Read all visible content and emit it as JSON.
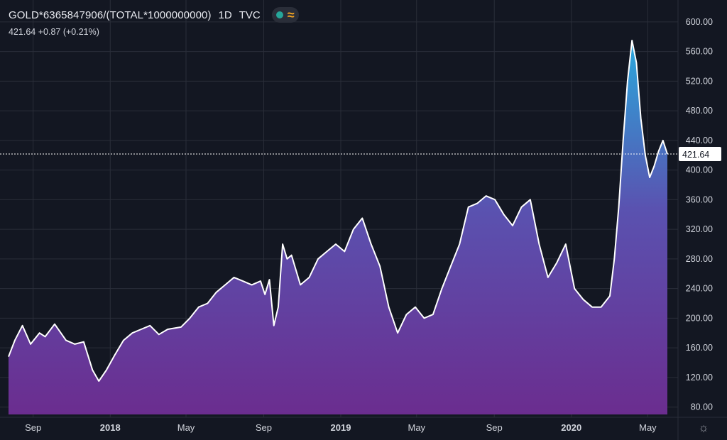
{
  "header": {
    "symbol": "GOLD*6365847906/(TOTAL*1000000000)",
    "interval": "1D",
    "exchange": "TVC",
    "last": "421.64",
    "change": "+0.87",
    "change_pct": "(+0.21%)"
  },
  "icons": {
    "status": "green-dot-icon",
    "indicator": "wave-icon",
    "settings": "gear-icon"
  },
  "colors": {
    "background": "#131722",
    "line": "#ffffff",
    "fill_top": "#2aa8dc",
    "fill_mid": "#5a52b0",
    "fill_bottom": "#6b2d8f",
    "grid": "#2a2e39",
    "price_label_bg": "#ffffff"
  },
  "chart_data": {
    "type": "area",
    "ylim": [
      70,
      620
    ],
    "y_ticks": [
      "80.00",
      "120.00",
      "160.00",
      "200.00",
      "240.00",
      "280.00",
      "320.00",
      "360.00",
      "400.00",
      "440.00",
      "480.00",
      "520.00",
      "560.00",
      "600.00"
    ],
    "x_ticks": [
      "Sep",
      "2018",
      "May",
      "Sep",
      "2019",
      "May",
      "Sep",
      "2020",
      "May"
    ],
    "last_price": 421.64,
    "last_price_label": "421.64",
    "series": [
      {
        "x": [
          "2017-07-24",
          "2017-08-03",
          "2017-08-15",
          "2017-08-28",
          "2017-09-11",
          "2017-09-20",
          "2017-10-05",
          "2017-10-23",
          "2017-11-06",
          "2017-11-20",
          "2017-12-04",
          "2017-12-14",
          "2017-12-26",
          "2018-01-08",
          "2018-01-22",
          "2018-02-05",
          "2018-02-19",
          "2018-03-05",
          "2018-03-19",
          "2018-04-02",
          "2018-04-23",
          "2018-05-07",
          "2018-05-21",
          "2018-06-04",
          "2018-06-18",
          "2018-07-02",
          "2018-07-16",
          "2018-07-30",
          "2018-08-13",
          "2018-08-27",
          "2018-09-03",
          "2018-09-10",
          "2018-09-17",
          "2018-09-24",
          "2018-10-01",
          "2018-10-08",
          "2018-10-15",
          "2018-10-29",
          "2018-11-12",
          "2018-11-26",
          "2018-12-10",
          "2018-12-24",
          "2019-01-07",
          "2019-01-21",
          "2019-02-04",
          "2019-02-18",
          "2019-03-04",
          "2019-03-18",
          "2019-04-01",
          "2019-04-15",
          "2019-04-29",
          "2019-05-13",
          "2019-05-27",
          "2019-06-10",
          "2019-06-24",
          "2019-07-08",
          "2019-07-22",
          "2019-08-05",
          "2019-08-19",
          "2019-09-02",
          "2019-09-16",
          "2019-09-30",
          "2019-10-14",
          "2019-10-28",
          "2019-11-11",
          "2019-11-25",
          "2019-12-09",
          "2019-12-23",
          "2020-01-06",
          "2020-01-20",
          "2020-02-03",
          "2020-02-17",
          "2020-03-02",
          "2020-03-09",
          "2020-03-16",
          "2020-03-23",
          "2020-03-30",
          "2020-04-06",
          "2020-04-13",
          "2020-04-20",
          "2020-04-27",
          "2020-05-04",
          "2020-05-11",
          "2020-05-18",
          "2020-05-25",
          "2020-06-01"
        ],
        "y": [
          148,
          170,
          190,
          165,
          180,
          175,
          192,
          170,
          165,
          168,
          130,
          115,
          130,
          150,
          170,
          180,
          185,
          190,
          178,
          185,
          188,
          200,
          215,
          220,
          235,
          245,
          255,
          250,
          245,
          250,
          232,
          252,
          190,
          215,
          300,
          280,
          285,
          245,
          255,
          280,
          290,
          300,
          290,
          320,
          335,
          300,
          270,
          215,
          180,
          205,
          215,
          200,
          205,
          240,
          270,
          300,
          350,
          355,
          365,
          360,
          340,
          325,
          350,
          360,
          300,
          255,
          275,
          300,
          240,
          225,
          215,
          215,
          230,
          280,
          350,
          440,
          520,
          575,
          545,
          470,
          420,
          390,
          405,
          425,
          440,
          421.64
        ]
      }
    ]
  }
}
